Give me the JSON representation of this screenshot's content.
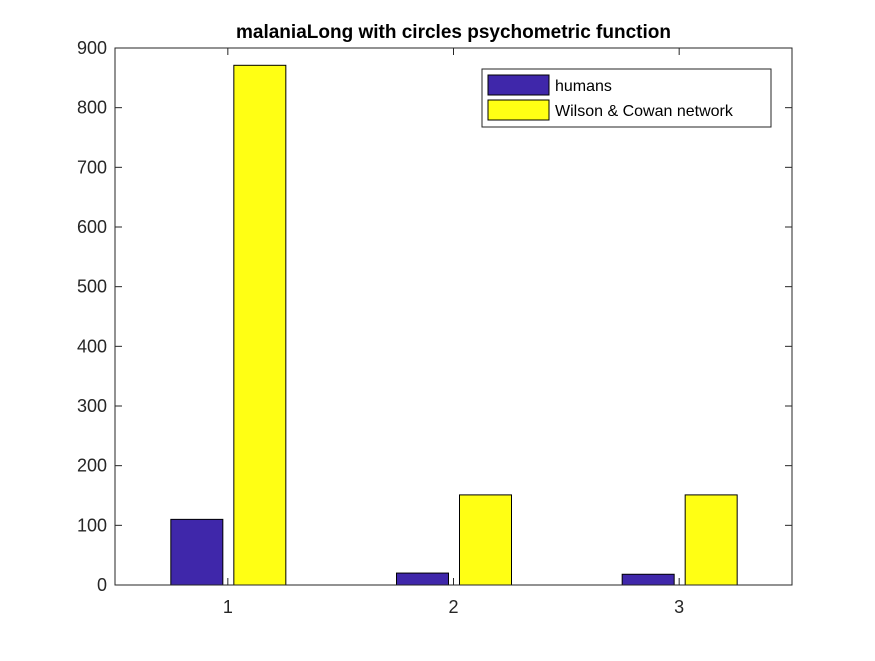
{
  "chart_data": {
    "type": "bar",
    "title": "malaniaLong with circles psychometric function",
    "xlabel": "",
    "ylabel": "",
    "categories": [
      "1",
      "2",
      "3"
    ],
    "series": [
      {
        "name": "humans",
        "color": "#3f27aa",
        "values": [
          110,
          20,
          18
        ]
      },
      {
        "name": "Wilson & Cowan network",
        "color": "#ffff14",
        "values": [
          871,
          151,
          151
        ]
      }
    ],
    "ylim": [
      0,
      900
    ],
    "yticks": [
      "0",
      "100",
      "200",
      "300",
      "400",
      "500",
      "600",
      "700",
      "800",
      "900"
    ],
    "xticks": [
      "1",
      "2",
      "3"
    ],
    "grid": false,
    "legend_position": "top-right"
  }
}
